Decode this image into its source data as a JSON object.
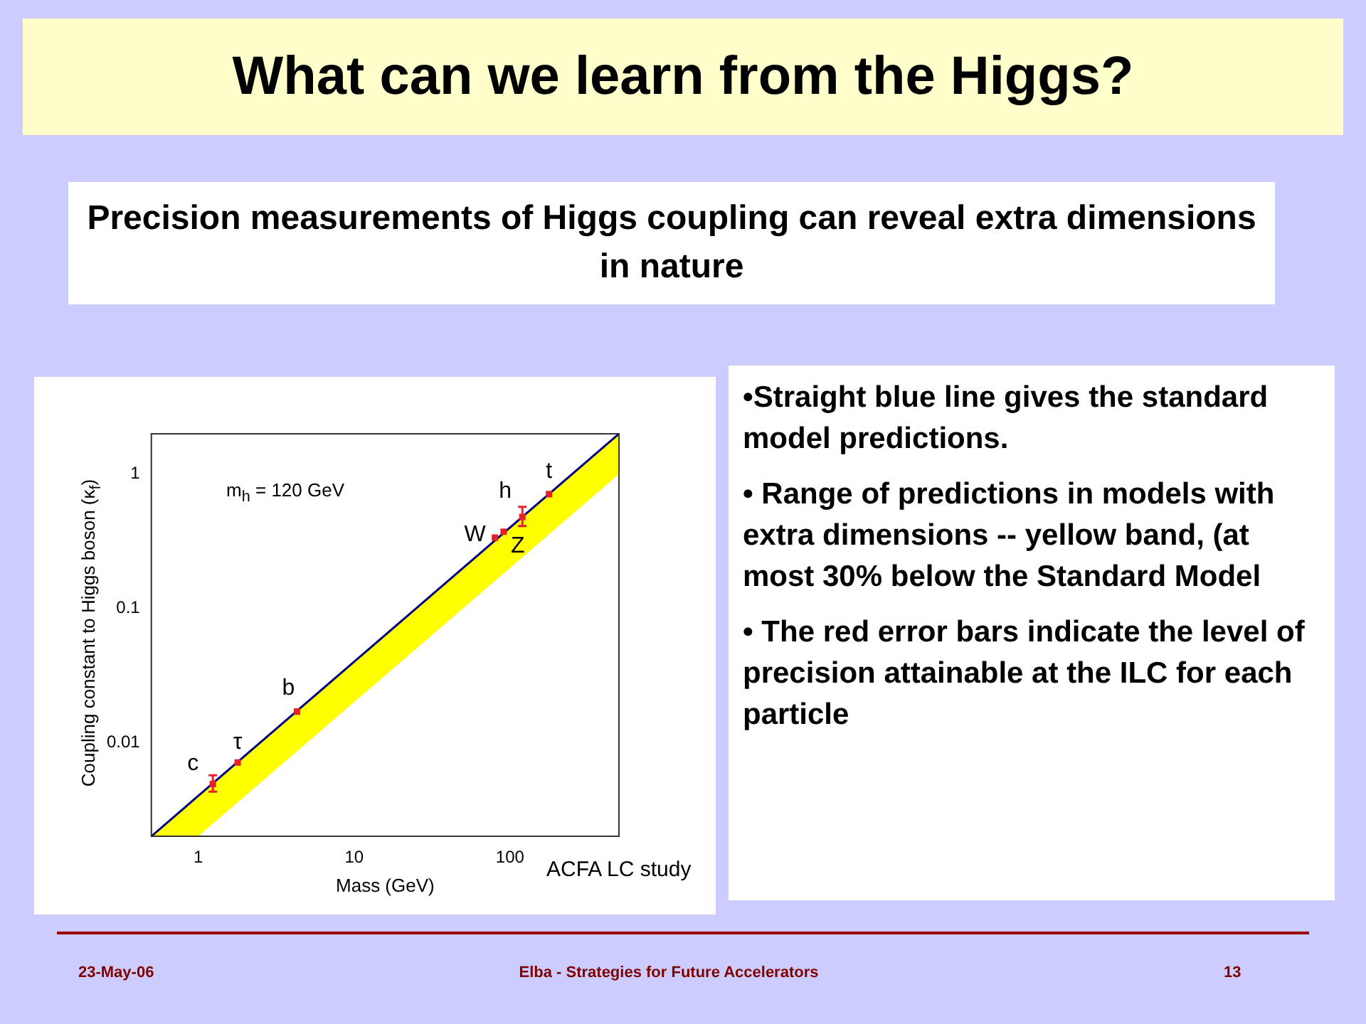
{
  "chart_data": {
    "type": "scatter",
    "title": "What can we learn from the Higgs?",
    "subtitle": "Precision measurements of Higgs coupling can reveal extra dimensions in nature",
    "xlabel": "Mass (GeV)",
    "ylabel": "Coupling constant to Higgs boson (κ$_{f}$)",
    "log": "xy",
    "xlim": [
      0.5,
      500
    ],
    "ylim": [
      0.002,
      2
    ],
    "xticks": [
      1,
      10,
      100
    ],
    "yticks": [
      0.01,
      0.1,
      1
    ],
    "grid": false,
    "legend": false,
    "series": [
      {
        "type": "line",
        "color": "#000080",
        "marker": "none",
        "x": [
          0.5,
          1,
          500
        ],
        "values": [
          0.002,
          0.004,
          2
        ],
        "lower": [
          0.002,
          0.002,
          1
        ],
        "upper": [
          0.002,
          0.004,
          2
        ]
      },
      {
        "color": "#e8202a",
        "marker": "square",
        "x": [
          1.24,
          1.79,
          4.3,
          80,
          91,
          120,
          178
        ],
        "values": [
          0.0049,
          0.0071,
          0.017,
          0.336,
          0.372,
          0.48,
          0.71
        ],
        "errors": [
          [
            0.0043,
            0.0057
          ],
          null,
          null,
          null,
          null,
          [
            0.41,
            0.57
          ],
          null
        ]
      }
    ],
    "annotations": [
      "•Straight blue line gives the standard model predictions.",
      "• Range of predictions in models with extra dimensions -- yellow band, (at most 30% below the Standard Model",
      "• The red error bars indicate the level of precision attainable at the ILC for each particle",
      "23-May-06",
      "Elba - Strategies for Future Accelerators",
      "13",
      "m$_{h}$ = 120 GeV",
      "ACFA LC study",
      {
        "text": "c",
        "x": 1.24,
        "y": 0.0049
      },
      {
        "text": "τ",
        "x": 1.79,
        "y": 0.0071
      },
      {
        "text": "b",
        "x": 4.3,
        "y": 0.017
      },
      {
        "text": "W",
        "x": 80,
        "y": 0.336
      },
      {
        "text": "Z",
        "x": 91,
        "y": 0.372
      },
      {
        "text": "h",
        "x": 120,
        "y": 0.48
      },
      {
        "text": "t",
        "x": 178,
        "y": 0.71
      }
    ]
  }
}
